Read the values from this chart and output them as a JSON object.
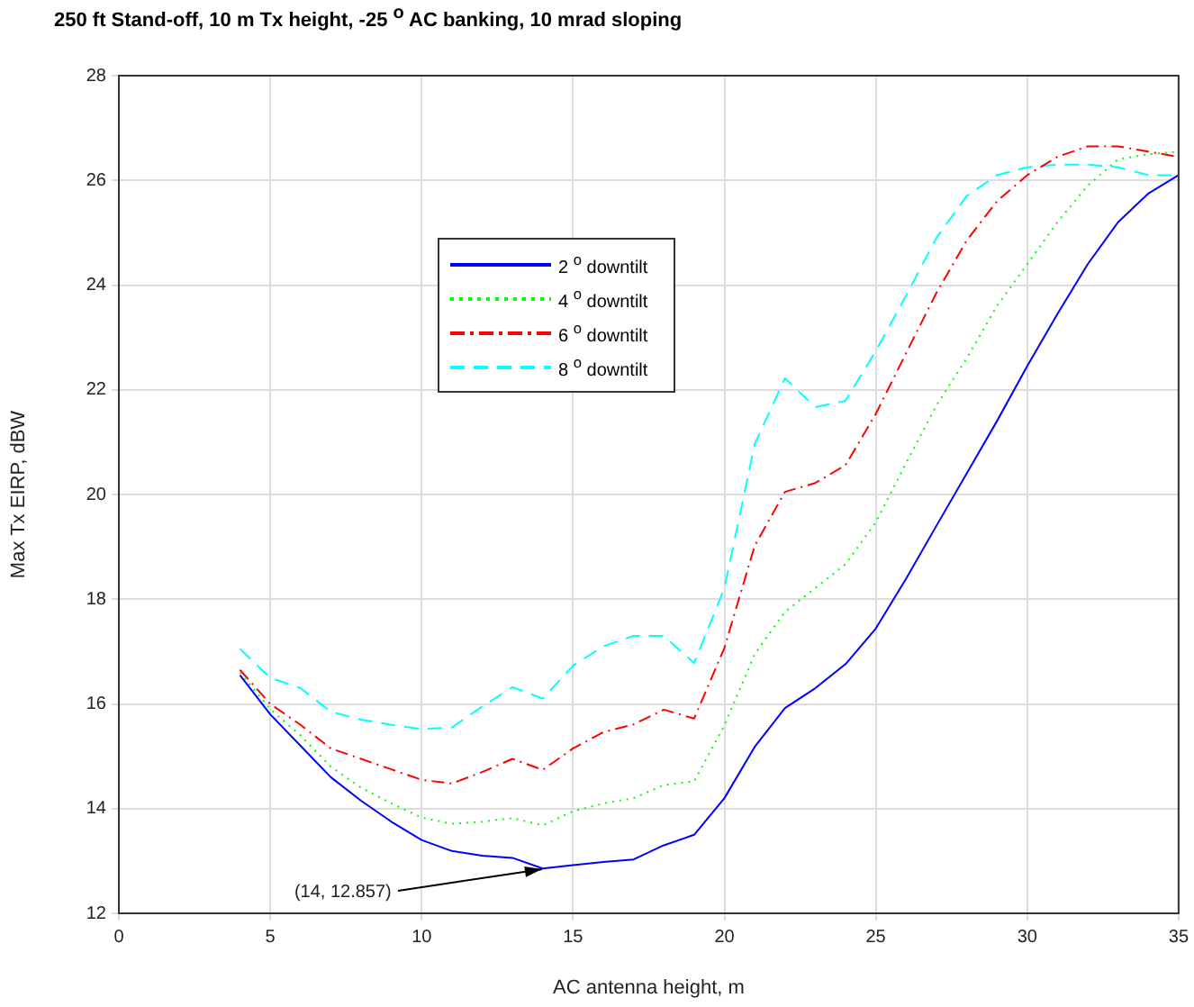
{
  "chart_data": {
    "type": "line",
    "title": "250 ft Stand-off, 10 m Tx height, -25 $^{o}$ AC banking, 10 mrad sloping",
    "xlabel": "AC antenna height, m",
    "ylabel": "Max Tx EIRP, dBW",
    "x": [
      4,
      5,
      6,
      7,
      8,
      9,
      10,
      11,
      12,
      13,
      14,
      15,
      16,
      17,
      18,
      19,
      20,
      21,
      22,
      23,
      24,
      25,
      26,
      27,
      28,
      29,
      30,
      31,
      32,
      33,
      34,
      35
    ],
    "series": [
      {
        "name": "2 $^{o}$ downtilt",
        "color": "#0000ff",
        "line_style": "solid",
        "values": [
          16.55,
          15.8,
          15.2,
          14.6,
          14.15,
          13.75,
          13.4,
          13.19,
          13.1,
          13.06,
          12.857,
          12.92,
          12.98,
          13.03,
          13.3,
          13.5,
          14.2,
          15.18,
          15.92,
          16.3,
          16.76,
          17.44,
          18.39,
          19.4,
          20.4,
          21.4,
          22.45,
          23.45,
          24.4,
          25.2,
          25.75,
          26.1
        ]
      },
      {
        "name": "4 $^{o}$ downtilt",
        "color": "#00ff00",
        "line_style": "dotted",
        "values": [
          16.6,
          15.9,
          15.4,
          14.8,
          14.4,
          14.1,
          13.83,
          13.71,
          13.75,
          13.82,
          13.68,
          13.95,
          14.1,
          14.2,
          14.45,
          14.52,
          15.59,
          16.95,
          17.76,
          18.21,
          18.67,
          19.47,
          20.6,
          21.7,
          22.6,
          23.6,
          24.4,
          25.2,
          25.9,
          26.4,
          26.5,
          26.55
        ]
      },
      {
        "name": "6 $^{o}$ downtilt",
        "color": "#ff0000",
        "line_style": "dashdot",
        "values": [
          16.65,
          16.0,
          15.6,
          15.15,
          14.95,
          14.75,
          14.55,
          14.48,
          14.7,
          14.95,
          14.74,
          15.15,
          15.46,
          15.61,
          15.89,
          15.72,
          17.07,
          19.02,
          20.05,
          20.22,
          20.56,
          21.54,
          22.7,
          23.85,
          24.85,
          25.6,
          26.1,
          26.45,
          26.65,
          26.65,
          26.55,
          26.45
        ]
      },
      {
        "name": "8 $^{o}$ downtilt",
        "color": "#00ffff",
        "line_style": "dashed",
        "values": [
          17.05,
          16.5,
          16.3,
          15.85,
          15.7,
          15.6,
          15.52,
          15.55,
          15.95,
          16.32,
          16.1,
          16.73,
          17.1,
          17.3,
          17.3,
          16.78,
          18.21,
          20.96,
          22.22,
          21.67,
          21.79,
          22.74,
          23.8,
          24.9,
          25.7,
          26.1,
          26.25,
          26.3,
          26.3,
          26.25,
          26.1,
          26.1
        ]
      }
    ],
    "xlim": [
      0,
      35
    ],
    "xticks": [
      0,
      5,
      10,
      15,
      20,
      25,
      30,
      35
    ],
    "ylim": [
      12,
      28
    ],
    "yticks": [
      12,
      14,
      16,
      18,
      20,
      22,
      24,
      26,
      28
    ],
    "grid": true,
    "legend": "top left",
    "marker": "none",
    "annotations": [
      {
        "text": "(14, 12.857)",
        "x": 14,
        "y": 12.857
      }
    ]
  }
}
